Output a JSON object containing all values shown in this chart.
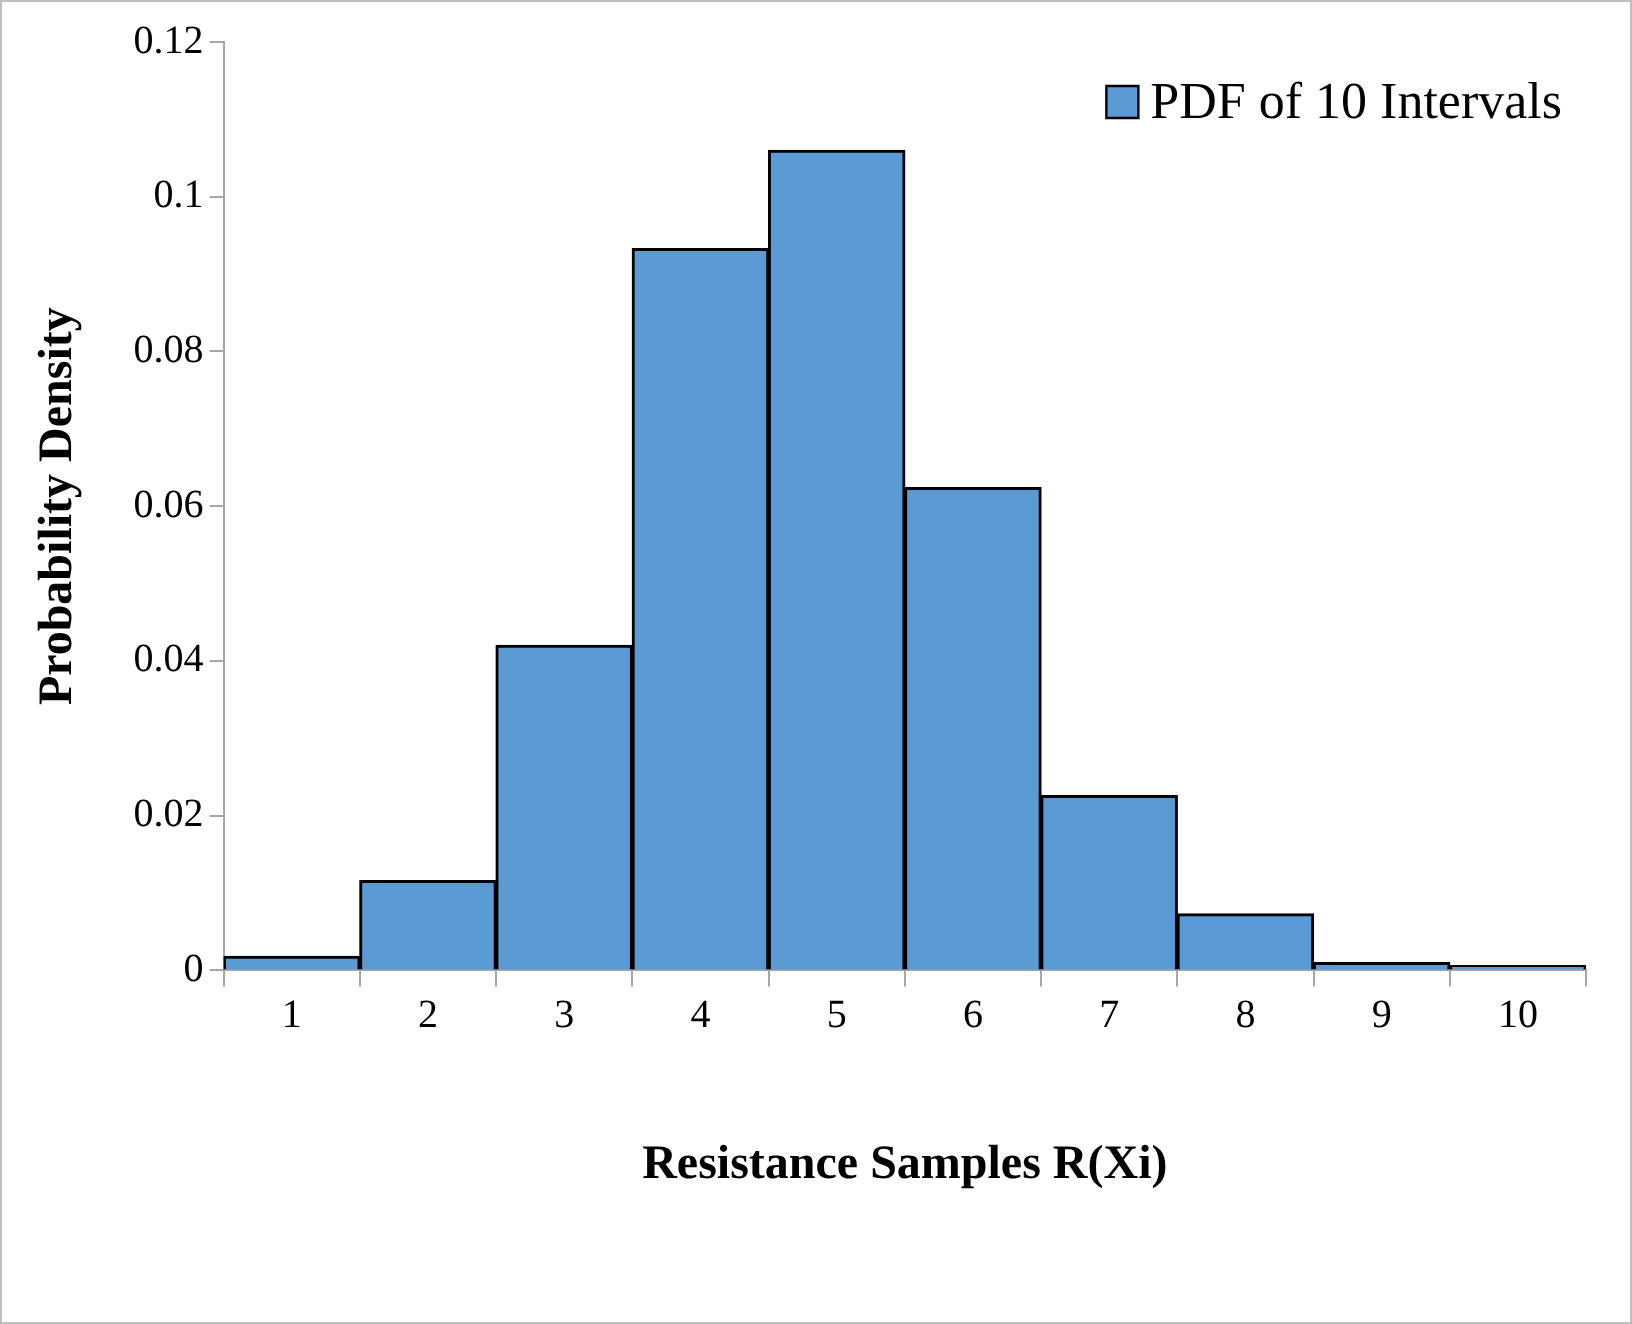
{
  "chart_data": {
    "type": "bar",
    "xlabel": "Resistance Samples R(Xi)",
    "ylabel": "Probability Density",
    "categories": [
      "1",
      "2",
      "3",
      "4",
      "5",
      "6",
      "7",
      "8",
      "9",
      "10"
    ],
    "series": [
      {
        "name": "PDF of 10 Intervals",
        "color": "#5b9bd5",
        "values": [
          0.0018,
          0.0116,
          0.042,
          0.0933,
          0.106,
          0.0624,
          0.0226,
          0.0073,
          0.001,
          0.0006
        ]
      }
    ],
    "ylim": [
      0,
      0.12
    ],
    "yticks": [
      0,
      0.02,
      0.04,
      0.06,
      0.08,
      0.1,
      0.12
    ],
    "grid": false,
    "legend": "top right"
  }
}
